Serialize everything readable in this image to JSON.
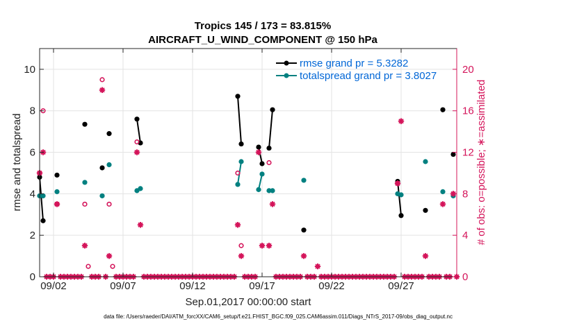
{
  "chart_data": {
    "type": "line",
    "title_line1": "Tropics 145 / 173 = 83.815%",
    "title_line2": "AIRCRAFT_U_WIND_COMPONENT @ 150 hPa",
    "xlabel": "Sep.01,2017 00:00:00 start",
    "ylabel_left": "rmse and totalspread",
    "ylabel_right": "# of obs: o=possible; ∗=assimilated",
    "xlim": [
      0,
      30
    ],
    "ylim_left": [
      0,
      11
    ],
    "ylim_right": [
      0,
      22
    ],
    "xticks": [
      1,
      6,
      11,
      16,
      21,
      26
    ],
    "xtick_labels": [
      "09/02",
      "09/07",
      "09/12",
      "09/17",
      "09/22",
      "09/27"
    ],
    "yticks_left": [
      0,
      2,
      4,
      6,
      8,
      10
    ],
    "yticks_right": [
      0,
      4,
      8,
      12,
      16,
      20
    ],
    "grid": true,
    "legend": [
      "rmse grand pr = 5.3282",
      "totalspread grand pr = 3.8027"
    ],
    "legend_position": "top-right",
    "colors": {
      "rmse": "#000000",
      "spread": "#008080",
      "obs": "#d4145a",
      "legend_text": "#0066d6"
    },
    "rmse_segments": [
      [
        [
          0,
          4.8
        ],
        [
          0.25,
          2.7
        ]
      ],
      [
        [
          1.25,
          4.9
        ]
      ],
      [
        [
          3.25,
          7.35
        ]
      ],
      [
        [
          4.5,
          5.25
        ]
      ],
      [
        [
          5.0,
          6.9
        ]
      ],
      [
        [
          7.0,
          7.6
        ],
        [
          7.25,
          6.45
        ]
      ],
      [
        [
          14.25,
          8.7
        ],
        [
          14.5,
          6.4
        ]
      ],
      [
        [
          15.75,
          6.25
        ],
        [
          16.0,
          5.45
        ]
      ],
      [
        [
          16.5,
          6.2
        ],
        [
          16.75,
          8.05
        ]
      ],
      [
        [
          19.0,
          2.25
        ]
      ],
      [
        [
          25.75,
          4.6
        ],
        [
          26.0,
          2.95
        ]
      ],
      [
        [
          27.75,
          3.2
        ]
      ],
      [
        [
          29.0,
          8.05
        ]
      ],
      [
        [
          29.75,
          5.9
        ]
      ]
    ],
    "spread_segments": [
      [
        [
          0,
          3.9
        ],
        [
          0.25,
          3.9
        ]
      ],
      [
        [
          1.25,
          4.1
        ]
      ],
      [
        [
          3.25,
          4.55
        ]
      ],
      [
        [
          4.5,
          3.9
        ]
      ],
      [
        [
          5.0,
          5.4
        ]
      ],
      [
        [
          7.0,
          4.15
        ],
        [
          7.25,
          4.25
        ]
      ],
      [
        [
          14.25,
          4.45
        ],
        [
          14.5,
          5.55
        ]
      ],
      [
        [
          15.75,
          4.2
        ],
        [
          16.0,
          4.95
        ]
      ],
      [
        [
          16.5,
          4.15
        ],
        [
          16.75,
          4.15
        ]
      ],
      [
        [
          19.0,
          4.65
        ]
      ],
      [
        [
          25.75,
          4.0
        ],
        [
          26.0,
          3.95
        ]
      ],
      [
        [
          27.75,
          5.55
        ]
      ],
      [
        [
          29.0,
          4.1
        ]
      ],
      [
        [
          29.75,
          3.9
        ]
      ]
    ],
    "obs_possible": [
      [
        0,
        10
      ],
      [
        0.25,
        16
      ],
      [
        1.25,
        7
      ],
      [
        3.25,
        7
      ],
      [
        3.5,
        1
      ],
      [
        4.5,
        19
      ],
      [
        5.0,
        7
      ],
      [
        5.25,
        1
      ],
      [
        7.0,
        13
      ],
      [
        14.25,
        10
      ],
      [
        14.5,
        3
      ],
      [
        16.5,
        11
      ],
      [
        25.75,
        9
      ]
    ],
    "obs_assimilated": [
      [
        0,
        10
      ],
      [
        0.25,
        12
      ],
      [
        1.25,
        7
      ],
      [
        3.25,
        3
      ],
      [
        4.5,
        18
      ],
      [
        5.0,
        2
      ],
      [
        7.0,
        12
      ],
      [
        7.25,
        5
      ],
      [
        14.25,
        5
      ],
      [
        14.5,
        2
      ],
      [
        15.75,
        12
      ],
      [
        16.0,
        3
      ],
      [
        16.5,
        3
      ],
      [
        16.75,
        7
      ],
      [
        19.0,
        2
      ],
      [
        20.0,
        1
      ],
      [
        25.75,
        9
      ],
      [
        26.0,
        15
      ],
      [
        27.75,
        2
      ],
      [
        29.0,
        7
      ],
      [
        29.75,
        8
      ]
    ],
    "obs_zero_x": [
      0.5,
      0.75,
      1.0,
      1.5,
      1.75,
      2.0,
      2.25,
      2.5,
      2.75,
      3.0,
      3.75,
      4.0,
      4.25,
      4.75,
      5.5,
      5.75,
      6.0,
      6.25,
      6.5,
      6.75,
      7.5,
      7.75,
      8.0,
      8.25,
      8.5,
      8.75,
      9.0,
      9.25,
      9.5,
      9.75,
      10.0,
      10.25,
      10.5,
      10.75,
      11.0,
      11.25,
      11.5,
      11.75,
      12.0,
      12.25,
      12.5,
      12.75,
      13.0,
      13.25,
      13.5,
      13.75,
      14.0,
      14.75,
      15.0,
      15.25,
      15.5,
      17.0,
      17.25,
      17.5,
      17.75,
      18.0,
      18.25,
      18.5,
      18.75,
      19.25,
      19.5,
      19.75,
      20.25,
      20.5,
      20.75,
      21.0,
      21.25,
      21.5,
      21.75,
      22.0,
      22.25,
      22.5,
      22.75,
      23.0,
      23.25,
      23.5,
      23.75,
      24.0,
      24.25,
      24.5,
      24.75,
      25.0,
      25.25,
      25.5,
      26.25,
      26.5,
      26.75,
      27.0,
      27.25,
      27.5,
      28.0,
      28.25,
      28.5,
      28.75,
      29.25,
      29.5,
      30.0
    ]
  },
  "footer": "data file: /Users/raeder/DAI/ATM_forcXX/CAM6_setup/f.e21.FHIST_BGC.f09_025.CAM6assim.011/Diags_NTrS_2017-09/obs_diag_output.nc"
}
